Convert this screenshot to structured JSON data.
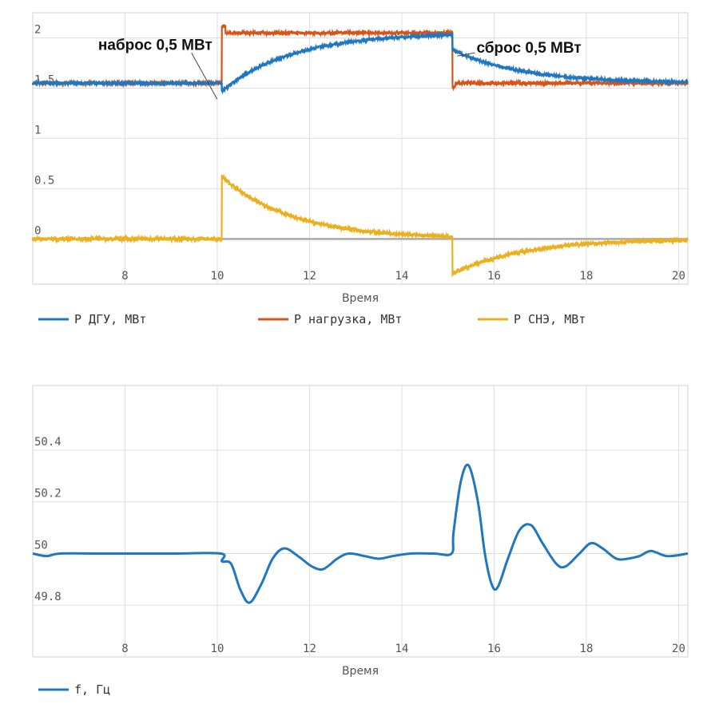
{
  "chart_data": [
    {
      "type": "line",
      "xlabel": "Время",
      "ylabel": "",
      "xlim": [
        6,
        20.2
      ],
      "ylim": [
        -0.45,
        2.25
      ],
      "xticks": [
        8,
        10,
        12,
        14,
        16,
        18,
        20
      ],
      "yticks": [
        0,
        0.5,
        1,
        1.5,
        2
      ],
      "ytick_labels": [
        "0",
        "0.5",
        "1",
        "1.5",
        "2"
      ],
      "grid": true,
      "legend_position": "bottom",
      "series": [
        {
          "name": "P ДГУ, МВт",
          "color": "#1f77c0",
          "step_on": 10.1,
          "step_off": 15.1,
          "base": 1.55,
          "high": 2.05,
          "tau": 1.5
        },
        {
          "name": "P нагрузка, МВт",
          "color": "#d95319",
          "step_on": 10.1,
          "step_off": 15.1,
          "base": 1.55,
          "high": 2.05
        },
        {
          "name": "P СНЭ, МВт",
          "color": "#ecb01f",
          "step_on": 10.1,
          "step_off": 15.1,
          "peak_on": 0.62,
          "peak_off": -0.35,
          "tau": 1.5
        },
        {
          "name": "",
          "color": "#aaaaaa",
          "y": 0
        }
      ],
      "annotations": [
        {
          "text": "наброс 0,5 МВт",
          "x": 10.1,
          "y": 1.55
        },
        {
          "text": "сброс 0,5 МВт",
          "x": 15.1,
          "y": 1.82
        }
      ]
    },
    {
      "type": "line",
      "xlabel": "Время",
      "ylabel": "",
      "xlim": [
        6,
        20.2
      ],
      "ylim": [
        49.6,
        50.65
      ],
      "xticks": [
        8,
        10,
        12,
        14,
        16,
        18,
        20
      ],
      "yticks": [
        49.8,
        50,
        50.2,
        50.4
      ],
      "ytick_labels": [
        "49.8",
        "50",
        "50.2",
        "50.4"
      ],
      "grid": true,
      "legend_position": "bottom-left",
      "series": [
        {
          "name": "f, Гц",
          "color": "#1f77c0",
          "points": [
            [
              6.0,
              50.0
            ],
            [
              6.3,
              49.99
            ],
            [
              6.6,
              50.0
            ],
            [
              7.5,
              50.0
            ],
            [
              9.0,
              50.0
            ],
            [
              10.08,
              50.0
            ],
            [
              10.1,
              49.97
            ],
            [
              10.3,
              49.96
            ],
            [
              10.5,
              49.86
            ],
            [
              10.7,
              49.81
            ],
            [
              10.95,
              49.88
            ],
            [
              11.2,
              49.98
            ],
            [
              11.45,
              50.02
            ],
            [
              11.75,
              49.99
            ],
            [
              12.05,
              49.95
            ],
            [
              12.3,
              49.94
            ],
            [
              12.6,
              49.98
            ],
            [
              12.85,
              50.0
            ],
            [
              13.2,
              49.99
            ],
            [
              13.5,
              49.98
            ],
            [
              13.8,
              49.99
            ],
            [
              14.2,
              50.0
            ],
            [
              14.7,
              50.0
            ],
            [
              15.08,
              50.0
            ],
            [
              15.12,
              50.08
            ],
            [
              15.28,
              50.28
            ],
            [
              15.45,
              50.34
            ],
            [
              15.65,
              50.2
            ],
            [
              15.8,
              50.0
            ],
            [
              15.95,
              49.88
            ],
            [
              16.08,
              49.87
            ],
            [
              16.3,
              49.98
            ],
            [
              16.55,
              50.09
            ],
            [
              16.8,
              50.11
            ],
            [
              17.05,
              50.04
            ],
            [
              17.35,
              49.96
            ],
            [
              17.55,
              49.95
            ],
            [
              17.85,
              50.0
            ],
            [
              18.1,
              50.04
            ],
            [
              18.35,
              50.02
            ],
            [
              18.65,
              49.98
            ],
            [
              18.9,
              49.98
            ],
            [
              19.15,
              49.99
            ],
            [
              19.4,
              50.01
            ],
            [
              19.75,
              49.99
            ],
            [
              20.2,
              50.0
            ]
          ]
        }
      ]
    }
  ]
}
